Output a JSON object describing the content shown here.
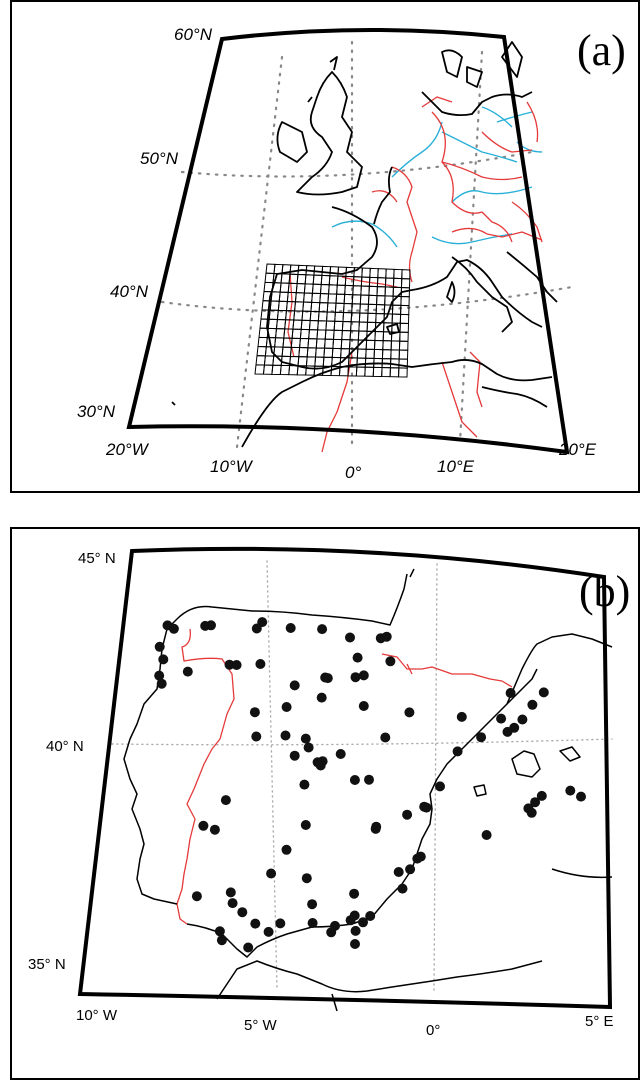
{
  "panel_a": {
    "label": "(a)",
    "lat_labels": [
      "60°N",
      "50°N",
      "40°N",
      "30°N"
    ],
    "lon_labels": [
      "20°W",
      "10°W",
      "0°",
      "10°E",
      "20°E"
    ],
    "grid": {
      "columns": 18,
      "rows": 12
    },
    "colors": {
      "coast": "#000000",
      "borders": "#e53a3a",
      "rivers": "#2ab0d8",
      "graticule": "#888888"
    }
  },
  "panel_b": {
    "label": "(b)",
    "lat_labels": [
      "45° N",
      "40° N",
      "35° N"
    ],
    "lon_labels": [
      "10° W",
      "5° W",
      "0°",
      "5° E"
    ],
    "stations": [
      {
        "lon": -8.63,
        "lat": 43.37
      },
      {
        "lon": -8.42,
        "lat": 43.3
      },
      {
        "lon": -7.46,
        "lat": 43.4
      },
      {
        "lon": -7.28,
        "lat": 43.42
      },
      {
        "lon": -5.85,
        "lat": 43.4
      },
      {
        "lon": -5.7,
        "lat": 43.55
      },
      {
        "lon": -4.8,
        "lat": 43.45
      },
      {
        "lon": -3.82,
        "lat": 43.46
      },
      {
        "lon": -2.94,
        "lat": 43.3
      },
      {
        "lon": -1.98,
        "lat": 43.32
      },
      {
        "lon": -1.8,
        "lat": 43.36
      },
      {
        "lon": -8.8,
        "lat": 42.88
      },
      {
        "lon": -8.65,
        "lat": 42.6
      },
      {
        "lon": -8.72,
        "lat": 42.23
      },
      {
        "lon": -8.62,
        "lat": 42.05
      },
      {
        "lon": -7.86,
        "lat": 42.35
      },
      {
        "lon": -6.6,
        "lat": 42.55
      },
      {
        "lon": -6.38,
        "lat": 42.55
      },
      {
        "lon": -5.65,
        "lat": 42.6
      },
      {
        "lon": -4.55,
        "lat": 42.15
      },
      {
        "lon": -3.63,
        "lat": 42.36
      },
      {
        "lon": -3.55,
        "lat": 42.35
      },
      {
        "lon": -2.67,
        "lat": 42.85
      },
      {
        "lon": -2.45,
        "lat": 42.45
      },
      {
        "lon": -1.65,
        "lat": 42.8
      },
      {
        "lon": -2.7,
        "lat": 42.4
      },
      {
        "lon": -4.75,
        "lat": 41.65
      },
      {
        "lon": -5.7,
        "lat": 41.5
      },
      {
        "lon": -3.7,
        "lat": 41.9
      },
      {
        "lon": -2.4,
        "lat": 41.75
      },
      {
        "lon": -1.0,
        "lat": 41.65
      },
      {
        "lon": -1.7,
        "lat": 41.05
      },
      {
        "lon": 0.6,
        "lat": 41.6
      },
      {
        "lon": 2.08,
        "lat": 42.2
      },
      {
        "lon": 2.75,
        "lat": 41.95
      },
      {
        "lon": 3.1,
        "lat": 42.25
      },
      {
        "lon": 2.2,
        "lat": 41.4
      },
      {
        "lon": 2.0,
        "lat": 41.3
      },
      {
        "lon": 1.2,
        "lat": 41.15
      },
      {
        "lon": 1.8,
        "lat": 41.6
      },
      {
        "lon": 2.45,
        "lat": 41.6
      },
      {
        "lon": 0.5,
        "lat": 40.8
      },
      {
        "lon": 0.0,
        "lat": 39.98
      },
      {
        "lon": -0.38,
        "lat": 39.48
      },
      {
        "lon": -0.45,
        "lat": 39.5
      },
      {
        "lon": -5.6,
        "lat": 40.95
      },
      {
        "lon": -4.72,
        "lat": 41.0
      },
      {
        "lon": -4.1,
        "lat": 40.95
      },
      {
        "lon": -3.7,
        "lat": 40.42
      },
      {
        "lon": -3.55,
        "lat": 40.45
      },
      {
        "lon": -3.6,
        "lat": 40.35
      },
      {
        "lon": -4.0,
        "lat": 40.75
      },
      {
        "lon": -4.4,
        "lat": 40.55
      },
      {
        "lon": -3.02,
        "lat": 40.63
      },
      {
        "lon": -2.13,
        "lat": 40.07
      },
      {
        "lon": -2.55,
        "lat": 40.05
      },
      {
        "lon": -6.35,
        "lat": 39.48
      },
      {
        "lon": -4.05,
        "lat": 39.9
      },
      {
        "lon": -6.95,
        "lat": 38.88
      },
      {
        "lon": -3.93,
        "lat": 38.98
      },
      {
        "lon": -1.86,
        "lat": 38.95
      },
      {
        "lon": -1.85,
        "lat": 39.0
      },
      {
        "lon": -0.5,
        "lat": 38.35
      },
      {
        "lon": -0.6,
        "lat": 38.3
      },
      {
        "lon": -0.8,
        "lat": 38.05
      },
      {
        "lon": -1.13,
        "lat": 37.98
      },
      {
        "lon": -1.0,
        "lat": 37.6
      },
      {
        "lon": -4.85,
        "lat": 37.85
      },
      {
        "lon": -3.8,
        "lat": 37.77
      },
      {
        "lon": -2.4,
        "lat": 37.45
      },
      {
        "lon": -3.6,
        "lat": 37.18
      },
      {
        "lon": -6.95,
        "lat": 37.28
      },
      {
        "lon": -5.98,
        "lat": 37.39
      },
      {
        "lon": -5.9,
        "lat": 37.15
      },
      {
        "lon": -4.48,
        "lat": 36.72
      },
      {
        "lon": -5.2,
        "lat": 36.7
      },
      {
        "lon": -6.2,
        "lat": 36.5
      },
      {
        "lon": -6.12,
        "lat": 36.3
      },
      {
        "lon": -5.35,
        "lat": 36.15
      },
      {
        "lon": -4.8,
        "lat": 36.52
      },
      {
        "lon": -3.55,
        "lat": 36.75
      },
      {
        "lon": -2.9,
        "lat": 36.7
      },
      {
        "lon": -2.46,
        "lat": 36.84
      },
      {
        "lon": -2.35,
        "lat": 36.95
      },
      {
        "lon": -2.1,
        "lat": 36.8
      },
      {
        "lon": -1.9,
        "lat": 36.95
      },
      {
        "lon": -3.0,
        "lat": 36.55
      },
      {
        "lon": -2.3,
        "lat": 36.6
      },
      {
        "lon": 2.65,
        "lat": 39.55
      },
      {
        "lon": 2.85,
        "lat": 39.7
      },
      {
        "lon": 3.05,
        "lat": 39.85
      },
      {
        "lon": 2.75,
        "lat": 39.45
      },
      {
        "lon": 4.22,
        "lat": 39.87
      },
      {
        "lon": 3.9,
        "lat": 40.0
      },
      {
        "lon": 1.42,
        "lat": 38.9
      },
      {
        "lon": -6.6,
        "lat": 38.8
      },
      {
        "lon": -5.6,
        "lat": 36.95
      },
      {
        "lon": -0.95,
        "lat": 39.3
      },
      {
        "lon": -4.45,
        "lat": 38.4
      },
      {
        "lon": -2.3,
        "lat": 36.3
      }
    ],
    "colors": {
      "coast": "#000000",
      "borders": "#e53a3a",
      "stations": "#111111",
      "graticule": "#aaaaaa"
    }
  }
}
